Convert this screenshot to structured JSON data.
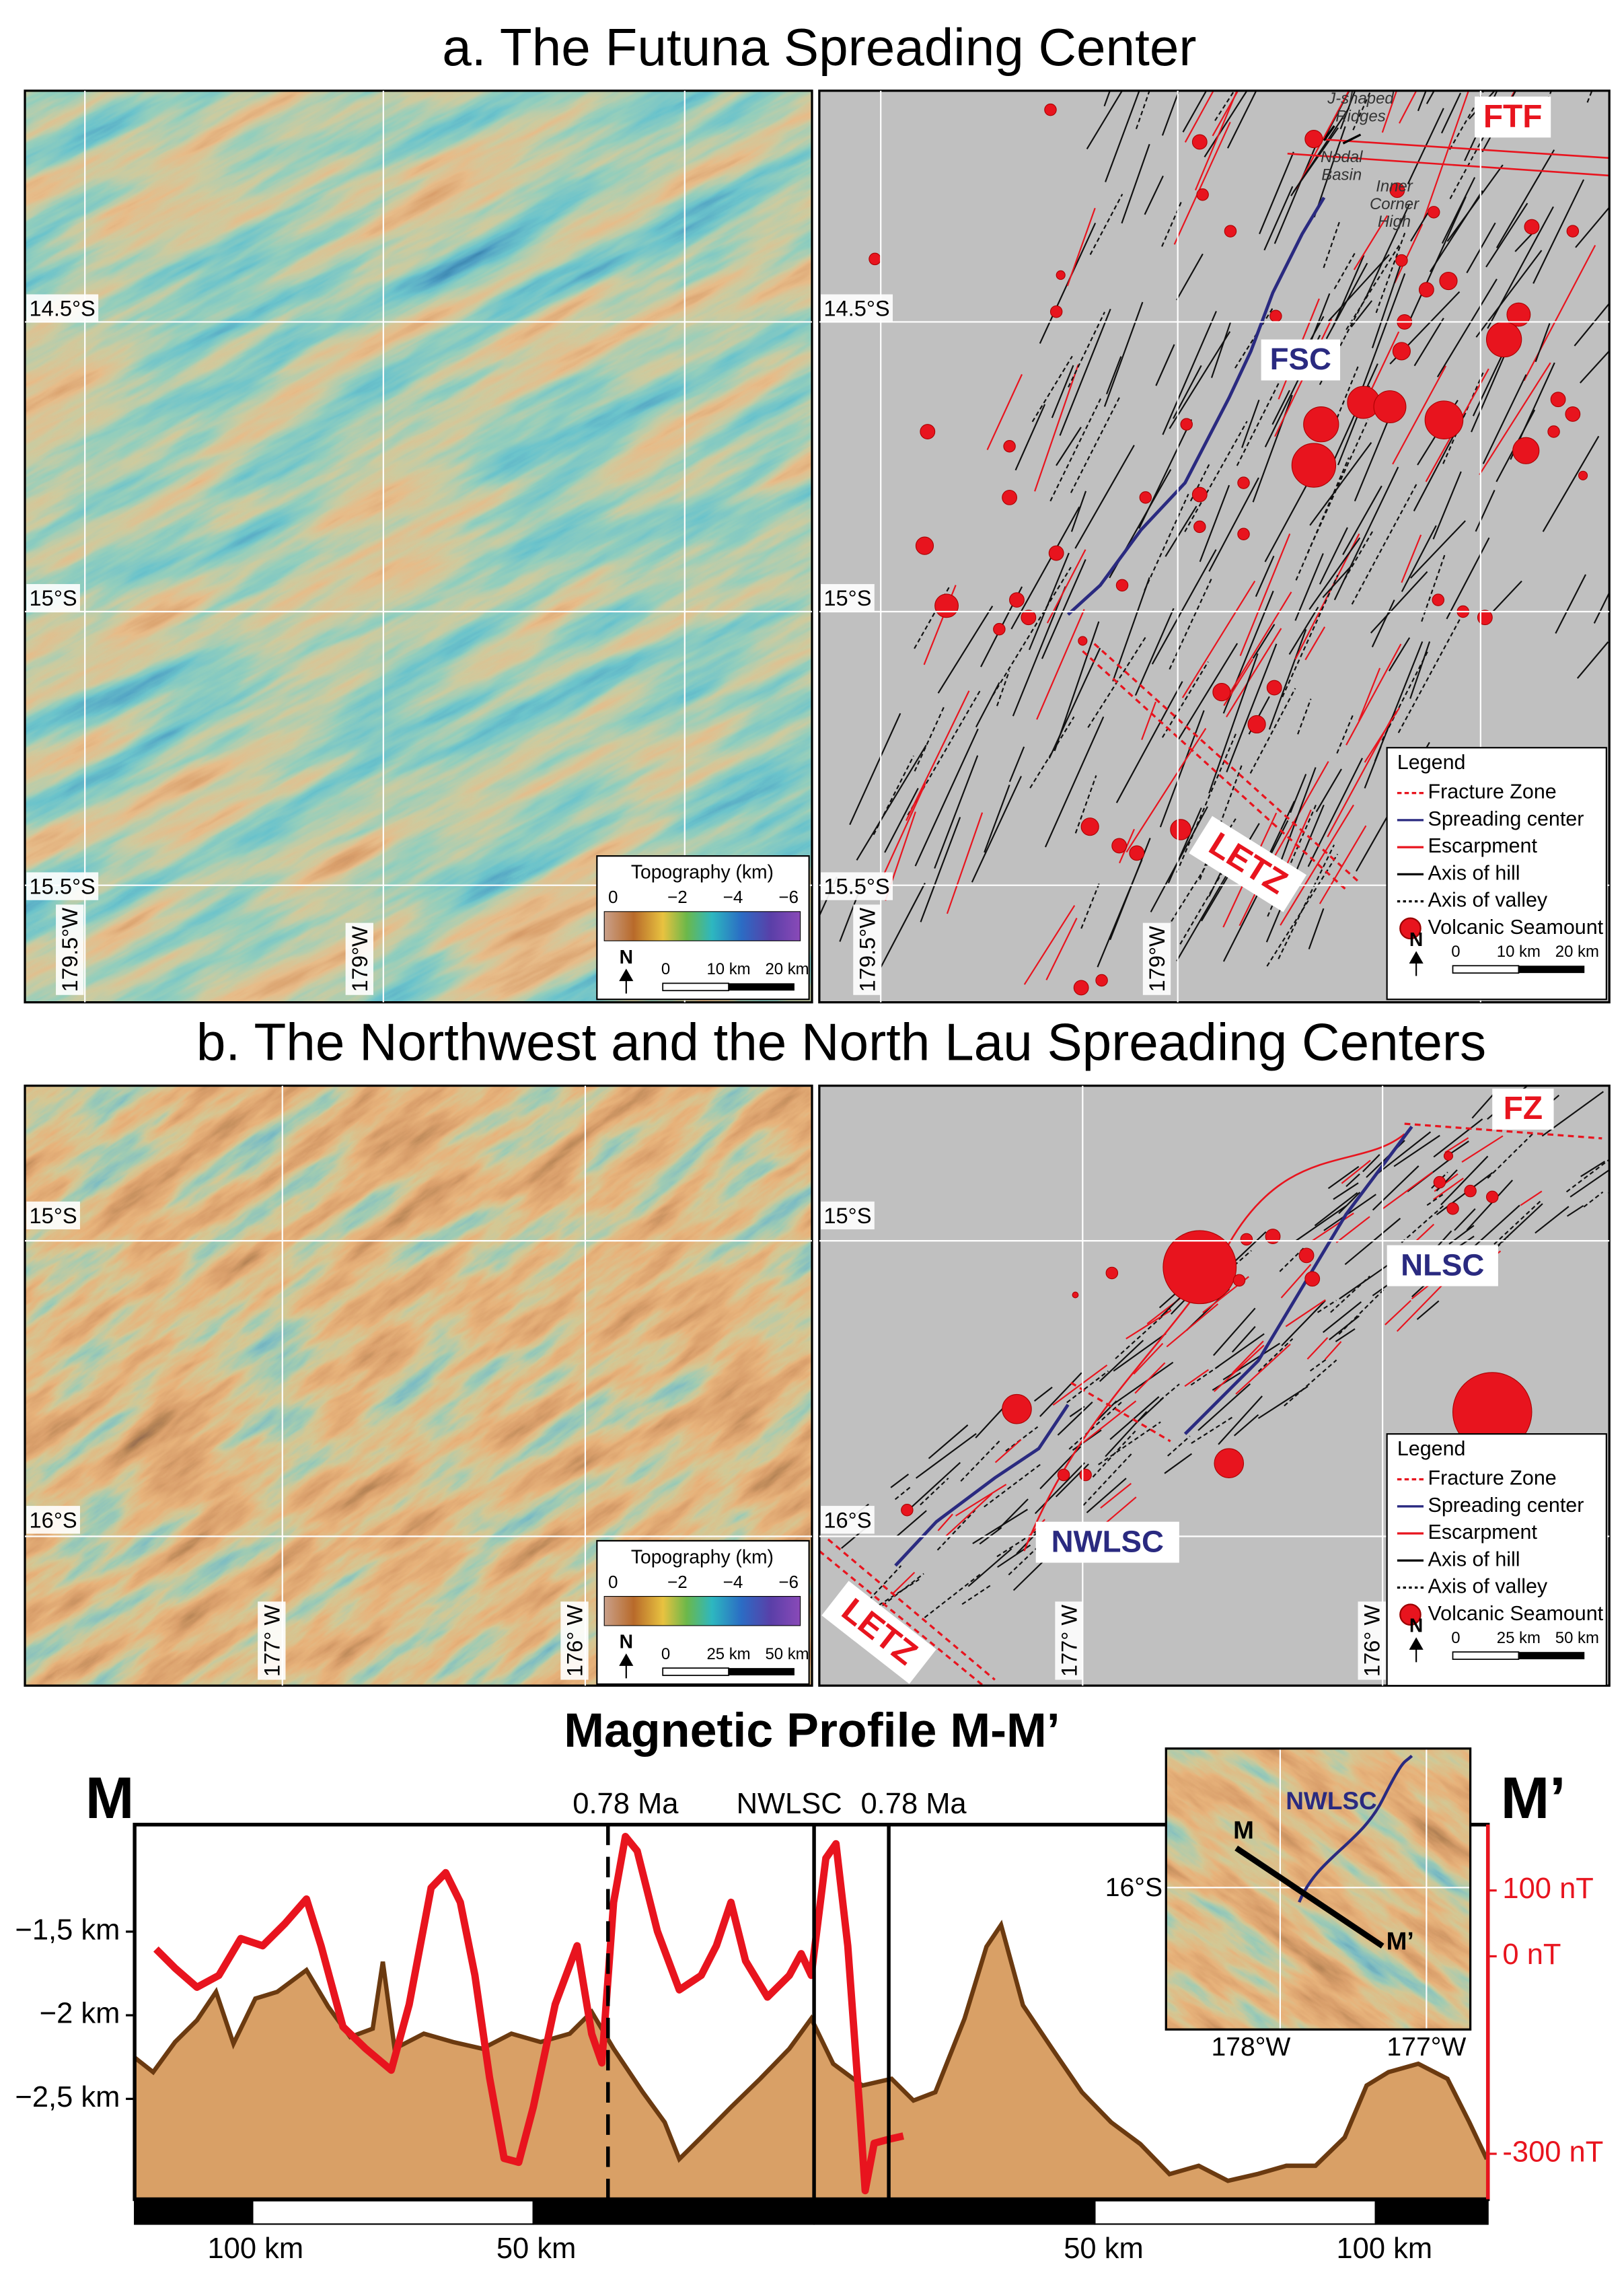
{
  "panel_a": {
    "title": "a. The Futuna Spreading Center",
    "topo_map": {
      "lat_labels": [
        "14.5°S",
        "15°S",
        "15.5°S"
      ],
      "lon_labels": [
        "179.5°W",
        "179°W"
      ],
      "colorbar_title": "Topography (km)",
      "colorbar_labels": [
        "0",
        "−2",
        "−4",
        "−6"
      ],
      "north": "N",
      "scale_labels": [
        "0",
        "10 km",
        "20 km"
      ]
    },
    "structural_map": {
      "lat_labels": [
        "14.5°S",
        "15°S",
        "15.5°S"
      ],
      "lon_labels": [
        "179.5°W",
        "179°W"
      ],
      "ftf": "FTF",
      "fsc": "FSC",
      "letz": "LETZ",
      "j_shaped_ridges": [
        "J-shaped",
        "Ridges"
      ],
      "nodal_basin": [
        "Nodal",
        "Basin"
      ],
      "inner_corner_high": [
        "Inner",
        "Corner",
        "High"
      ],
      "legend": {
        "title": "Legend",
        "items": [
          "Fracture Zone",
          "Spreading center",
          "Escarpment",
          "Axis of hill",
          "Axis of valley",
          "Volcanic Seamount"
        ],
        "north": "N",
        "scale_labels": [
          "0",
          "10 km",
          "20 km"
        ]
      }
    }
  },
  "panel_b": {
    "title": "b. The Northwest and the North Lau Spreading Centers",
    "topo_map": {
      "lat_labels": [
        "15°S",
        "16°S"
      ],
      "lon_labels": [
        "177° W",
        "176° W"
      ],
      "colorbar_title": "Topography (km)",
      "colorbar_labels": [
        "0",
        "−2",
        "−4",
        "−6"
      ],
      "north": "N",
      "scale_labels": [
        "0",
        "25 km",
        "50 km"
      ]
    },
    "structural_map": {
      "lat_labels": [
        "15°S",
        "16°S"
      ],
      "lon_labels": [
        "177° W",
        "176° W"
      ],
      "fz": "FZ",
      "nlsc": "NLSC",
      "nwlsc": "NWLSC",
      "letz": "LETZ",
      "legend": {
        "title": "Legend",
        "items": [
          "Fracture Zone",
          "Spreading center",
          "Escarpment",
          "Axis of hill",
          "Axis of valley",
          "Volcanic Seamount"
        ],
        "north": "N",
        "scale_labels": [
          "0",
          "25 km",
          "50 km"
        ]
      }
    }
  },
  "chart_data": {
    "type": "profile",
    "title": "Magnetic Profile M-M’",
    "end_labels": [
      "M",
      "M’"
    ],
    "xlim": [
      -121,
      120
    ],
    "xticks": [
      {
        "value": -100,
        "label": "100 km"
      },
      {
        "value": -50,
        "label": "50 km"
      },
      {
        "value": 50,
        "label": "50 km"
      },
      {
        "value": 100,
        "label": "100 km"
      }
    ],
    "ylim": [
      -3.1,
      -0.86
    ],
    "yticks": [
      {
        "value": -1.5,
        "label": "−1,5 km"
      },
      {
        "value": -2,
        "label": "−2 km"
      },
      {
        "value": -2.5,
        "label": "−2,5 km"
      }
    ],
    "y2lim": [
      -369,
      200
    ],
    "y2ticks": [
      {
        "value": 100,
        "label": "100 nT"
      },
      {
        "value": 0,
        "label": "0 nT"
      },
      {
        "value": -300,
        "label": "-300 nT"
      }
    ],
    "series": [
      {
        "type": "area",
        "color": "#d9a066",
        "x": [
          -121.1,
          -117.7,
          -113.8,
          -109.9,
          -106.5,
          -103.4,
          -99.5,
          -95.6,
          -90.4,
          -86.5,
          -82.6,
          -78.6,
          -76.8,
          -74.7,
          -69.5,
          -64.3,
          -59.1,
          -53.9,
          -48.7,
          -43.5,
          -39.6,
          -35.7,
          -30.5,
          -26.6,
          -24.0,
          -20.1,
          -14.8,
          -9.6,
          -4.4,
          -0.5,
          3.4,
          8.6,
          13.8,
          17.7,
          21.6,
          26.8,
          30.7,
          33.3,
          37.2,
          42.4,
          47.7,
          52.9,
          58.1,
          63.3,
          68.5,
          73.7,
          78.9,
          84.1,
          89.3,
          94.5,
          98.4,
          102.3,
          107.6,
          112.8,
          116.7,
          119.8
        ],
        "values": [
          -2.25,
          -2.34,
          -2.16,
          -2.03,
          -1.86,
          -2.17,
          -1.9,
          -1.86,
          -1.73,
          -1.95,
          -2.13,
          -2.08,
          -1.68,
          -2.2,
          -2.11,
          -2.16,
          -2.2,
          -2.11,
          -2.16,
          -2.11,
          -1.98,
          -2.2,
          -2.46,
          -2.64,
          -2.86,
          -2.73,
          -2.55,
          -2.38,
          -2.2,
          -2.02,
          -2.29,
          -2.42,
          -2.38,
          -2.51,
          -2.46,
          -2.02,
          -1.59,
          -1.46,
          -1.94,
          -2.2,
          -2.46,
          -2.64,
          -2.77,
          -2.95,
          -2.9,
          -2.99,
          -2.95,
          -2.9,
          -2.9,
          -2.73,
          -2.42,
          -2.34,
          -2.29,
          -2.38,
          -2.64,
          -2.86
        ]
      },
      {
        "type": "line",
        "color": "#e8141e",
        "axis": "y2",
        "x": [
          -117.2,
          -113.8,
          -109.9,
          -106.0,
          -102.1,
          -98.2,
          -94.3,
          -90.4,
          -87.8,
          -83.9,
          -79.9,
          -75.3,
          -72.1,
          -68.2,
          -65.6,
          -63.0,
          -60.4,
          -57.8,
          -55.2,
          -52.6,
          -50.0,
          -46.1,
          -42.2,
          -39.6,
          -37.8,
          -35.7,
          -33.6,
          -31.5,
          -27.9,
          -24.0,
          -20.1,
          -17.4,
          -14.8,
          -12.2,
          -8.3,
          -4.4,
          -2.3,
          -0.5,
          2.1,
          3.9,
          6.0,
          8.1,
          9.1,
          10.7,
          13.3,
          15.9
        ],
        "values": [
          11,
          -18,
          -47,
          -29,
          27,
          16,
          49,
          87,
          16,
          -107,
          -140,
          -173,
          -73,
          104,
          127,
          82,
          -29,
          -184,
          -307,
          -313,
          -229,
          -73,
          16,
          -118,
          -162,
          82,
          182,
          160,
          38,
          -51,
          -29,
          16,
          82,
          -7,
          -62,
          -29,
          4,
          -29,
          149,
          171,
          16,
          -229,
          -356,
          -284,
          -278,
          -273
        ]
      }
    ],
    "annotations": [
      {
        "x": -36.7,
        "label": "0.78 Ma",
        "dashed": true
      },
      {
        "x": 0,
        "label": "NWLSC"
      },
      {
        "x": 13.3,
        "label": "0.78 Ma"
      }
    ]
  },
  "inset_map": {
    "nwlsc": "NWLSC",
    "start": "M",
    "end": "M’",
    "lat_label": "16°S",
    "lon_labels": [
      "178°W",
      "177°W"
    ]
  }
}
